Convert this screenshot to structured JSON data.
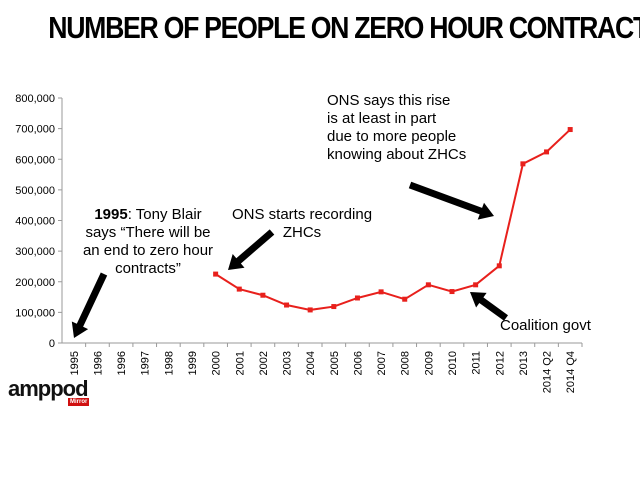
{
  "title": "NUMBER OF PEOPLE ON ZERO HOUR CONTRACTS",
  "annotations": {
    "blair_bold": "1995",
    "blair_rest1": ": Tony Blair",
    "blair_line2": "says “There will be",
    "blair_line3": "an end to zero hour",
    "blair_line4": "contracts”",
    "ons_start_line1": "ONS starts recording",
    "ons_start_line2": "ZHCs",
    "ons_rise_line1": "ONS says this rise",
    "ons_rise_line2": "is at least in part",
    "ons_rise_line3": "due to more people",
    "ons_rise_line4": "knowing about ZHCs",
    "coalition": "Coalition govt"
  },
  "logo": {
    "text": "amppod",
    "badge": "Mirror"
  },
  "colors": {
    "series": "#e8201c",
    "axis": "#9a9a9a",
    "text": "#000000",
    "arrow": "#000000"
  },
  "chart_data": {
    "type": "line",
    "title": "NUMBER OF PEOPLE ON ZERO HOUR CONTRACTS",
    "xlabel": "",
    "ylabel": "",
    "categories": [
      "1995",
      "1996",
      "1996",
      "1997",
      "1998",
      "1999",
      "2000",
      "2001",
      "2002",
      "2003",
      "2004",
      "2005",
      "2006",
      "2007",
      "2008",
      "2009",
      "2010",
      "2011",
      "2012",
      "2013",
      "2014 Q2",
      "2014 Q4"
    ],
    "y_ticks": [
      "0",
      "100,000",
      "200,000",
      "300,000",
      "400,000",
      "500,000",
      "600,000",
      "700,000",
      "800,000"
    ],
    "ylim": [
      0,
      800000
    ],
    "grid": false,
    "legend": "none",
    "series": [
      {
        "values": [
          null,
          null,
          null,
          null,
          null,
          null,
          225000,
          176000,
          156000,
          124000,
          108000,
          119000,
          147000,
          167000,
          143000,
          190000,
          168000,
          190000,
          252000,
          585000,
          624000,
          697000
        ]
      }
    ]
  }
}
